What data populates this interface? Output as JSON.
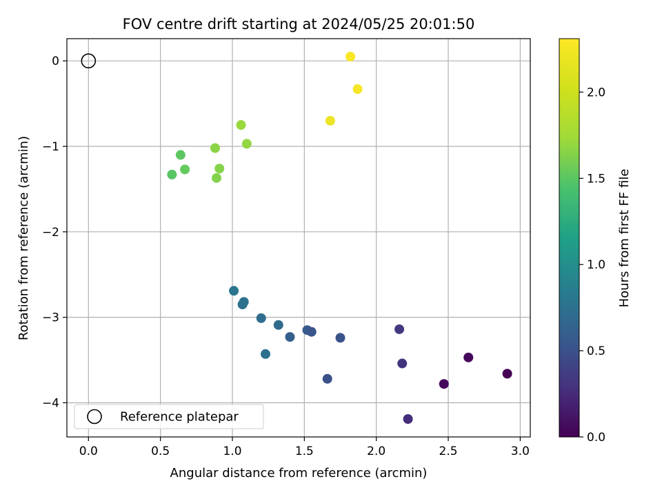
{
  "chart_data": {
    "type": "scatter",
    "title": "FOV centre drift starting at 2024/05/25 20:01:50",
    "xlabel": "Angular distance from reference (arcmin)",
    "ylabel": "Rotation from reference (arcmin)",
    "xlim": [
      -0.15,
      3.07
    ],
    "ylim": [
      -4.4,
      0.26
    ],
    "xticks": [
      0.0,
      0.5,
      1.0,
      1.5,
      2.0,
      2.5,
      3.0
    ],
    "xtick_labels": [
      "0.0",
      "0.5",
      "1.0",
      "1.5",
      "2.0",
      "2.5",
      "3.0"
    ],
    "yticks": [
      0,
      -1,
      -2,
      -3,
      -4
    ],
    "ytick_labels": [
      "0",
      "−1",
      "−2",
      "−3",
      "−4"
    ],
    "grid": true,
    "colorbar": {
      "label": "Hours from first FF file",
      "colormap": "viridis",
      "range": [
        0.0,
        2.31
      ],
      "ticks": [
        0.0,
        0.5,
        1.0,
        1.5,
        2.0
      ],
      "tick_labels": [
        "0.0",
        "0.5",
        "1.0",
        "1.5",
        "2.0"
      ]
    },
    "legend": {
      "placement": "lower-left",
      "entries": [
        "Reference platepar"
      ]
    },
    "reference_point": {
      "x": 0.0,
      "y": 0.0
    },
    "series": [
      {
        "points": [
          {
            "x": 1.82,
            "y": 0.05,
            "hours": 2.3
          },
          {
            "x": 1.87,
            "y": -0.33,
            "hours": 2.28
          },
          {
            "x": 1.68,
            "y": -0.7,
            "hours": 2.25
          },
          {
            "x": 1.06,
            "y": -0.75,
            "hours": 1.95
          },
          {
            "x": 1.1,
            "y": -0.97,
            "hours": 1.93
          },
          {
            "x": 0.88,
            "y": -1.02,
            "hours": 1.9
          },
          {
            "x": 0.64,
            "y": -1.1,
            "hours": 1.72
          },
          {
            "x": 0.91,
            "y": -1.26,
            "hours": 1.88
          },
          {
            "x": 0.67,
            "y": -1.27,
            "hours": 1.75
          },
          {
            "x": 0.58,
            "y": -1.33,
            "hours": 1.7
          },
          {
            "x": 0.89,
            "y": -1.37,
            "hours": 1.87
          },
          {
            "x": 1.01,
            "y": -2.69,
            "hours": 0.9
          },
          {
            "x": 1.08,
            "y": -2.82,
            "hours": 0.88
          },
          {
            "x": 1.07,
            "y": -2.85,
            "hours": 0.86
          },
          {
            "x": 1.2,
            "y": -3.01,
            "hours": 0.82
          },
          {
            "x": 1.32,
            "y": -3.09,
            "hours": 0.8
          },
          {
            "x": 1.52,
            "y": -3.15,
            "hours": 0.65
          },
          {
            "x": 1.55,
            "y": -3.17,
            "hours": 0.62
          },
          {
            "x": 1.4,
            "y": -3.23,
            "hours": 0.7
          },
          {
            "x": 1.75,
            "y": -3.24,
            "hours": 0.6
          },
          {
            "x": 1.23,
            "y": -3.43,
            "hours": 0.84
          },
          {
            "x": 1.66,
            "y": -3.72,
            "hours": 0.58
          },
          {
            "x": 2.16,
            "y": -3.14,
            "hours": 0.4
          },
          {
            "x": 2.18,
            "y": -3.54,
            "hours": 0.35
          },
          {
            "x": 2.22,
            "y": -4.19,
            "hours": 0.3
          },
          {
            "x": 2.47,
            "y": -3.78,
            "hours": 0.05
          },
          {
            "x": 2.64,
            "y": -3.47,
            "hours": 0.04
          },
          {
            "x": 2.91,
            "y": -3.66,
            "hours": 0.0
          }
        ]
      }
    ]
  }
}
